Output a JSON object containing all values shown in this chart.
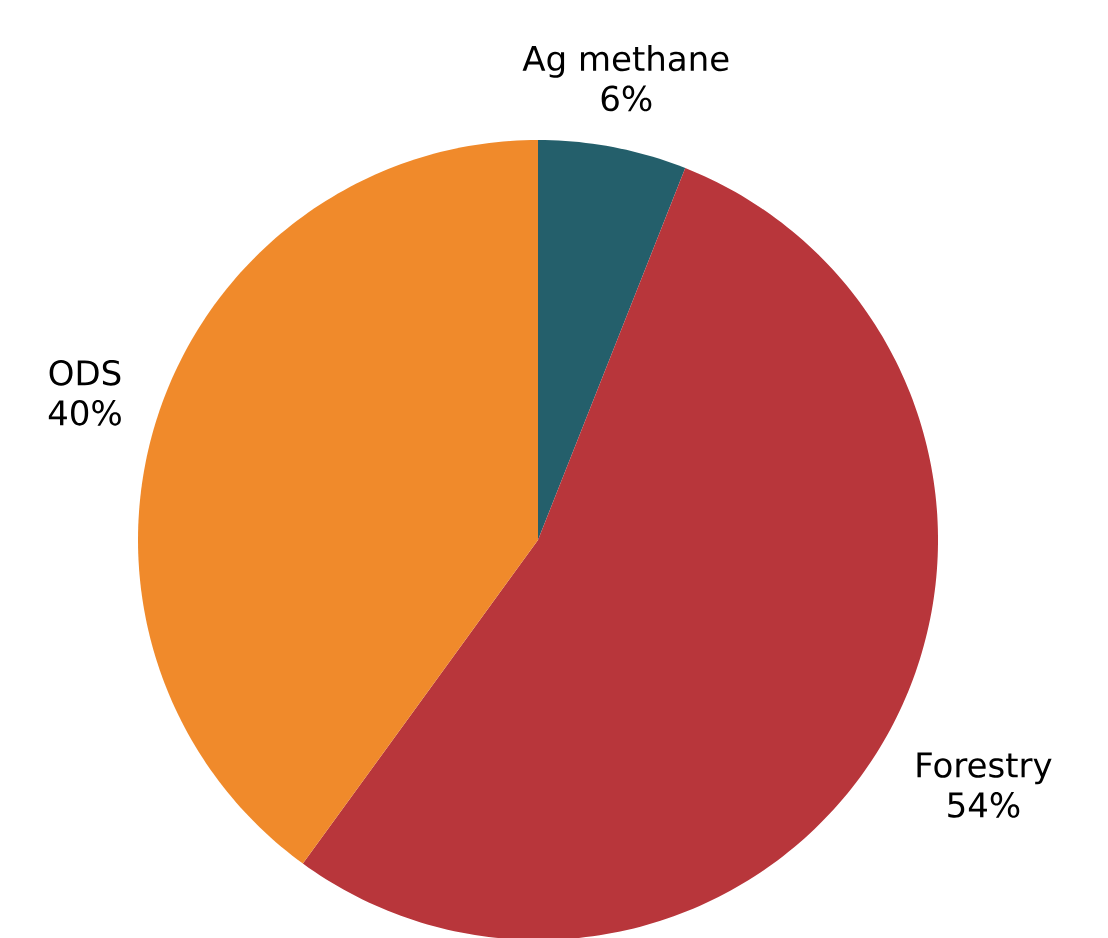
{
  "chart_data": {
    "type": "pie",
    "categories": [
      "Ag methane",
      "Forestry",
      "ODS"
    ],
    "values": [
      6,
      54,
      40
    ],
    "value_labels": [
      "6%",
      "54%",
      "40%"
    ],
    "colors": [
      "#245f6b",
      "#b8363b",
      "#f08a2b"
    ]
  }
}
